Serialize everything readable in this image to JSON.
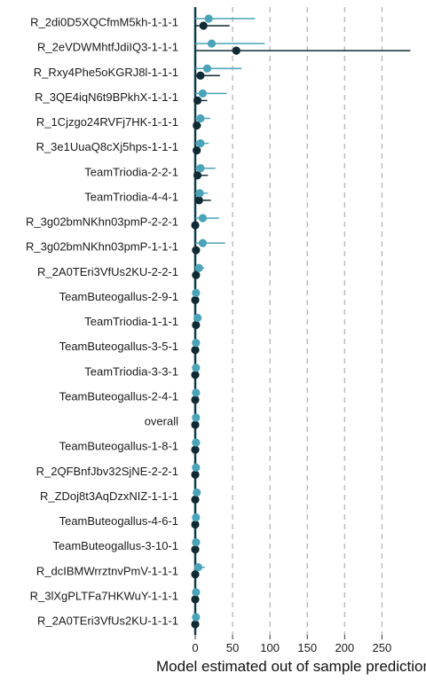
{
  "chart_data": {
    "type": "scatter",
    "xlabel": "Model estimated out of sample prediction",
    "ylabel": "",
    "xlim": [
      -12,
      290
    ],
    "xticks": [
      0,
      50,
      100,
      150,
      200,
      250
    ],
    "grid": "vertical dashed at x ticks",
    "colors": {
      "light": "#4aa3b8",
      "dark": "#0f2a33",
      "zero_line": "#0f3a4a",
      "grid": "#b5b5b5"
    },
    "categories": [
      "R_2di0D5XQCfmM5kh-1-1-1",
      "R_2eVDWMhtfJdiIQ3-1-1-1",
      "R_Rxy4Phe5oKGRJ8l-1-1-1",
      "R_3QE4iqN6t9BPkhX-1-1-1",
      "R_1Cjzgo24RVFj7HK-1-1-1",
      "R_3e1UuaQ8cXj5hps-1-1-1",
      "TeamTriodia-2-2-1",
      "TeamTriodia-4-4-1",
      "R_3g02bmNKhn03pmP-2-2-1",
      "R_3g02bmNKhn03pmP-1-1-1",
      "R_2A0TEri3VfUs2KU-2-2-1",
      "TeamButeogallus-2-9-1",
      "TeamTriodia-1-1-1",
      "TeamButeogallus-3-5-1",
      "TeamTriodia-3-3-1",
      "TeamButeogallus-2-4-1",
      "overall",
      "TeamButeogallus-1-8-1",
      "R_2QFBnfJbv32SjNE-2-2-1",
      "R_ZDoj8t3AqDzxNIZ-1-1-1",
      "TeamButeogallus-4-6-1",
      "TeamButeogallus-3-10-1",
      "R_dcIBMWrrztnvPmV-1-1-1",
      "R_3lXgPLTFa7HKWuY-1-1-1",
      "R_2A0TEri3VfUs2KU-1-1-1"
    ],
    "series": [
      {
        "values": [
          18,
          22,
          16,
          10,
          7,
          7,
          7,
          6,
          10,
          10,
          5,
          1,
          3,
          1,
          1,
          1,
          1,
          1,
          1,
          2,
          1,
          1,
          4,
          1,
          1
        ],
        "interval": [
          [
            0,
            80
          ],
          [
            0,
            93
          ],
          [
            0,
            62
          ],
          [
            0,
            42
          ],
          [
            0,
            20
          ],
          [
            0,
            18
          ],
          [
            0,
            27
          ],
          [
            0,
            17
          ],
          [
            0,
            32
          ],
          [
            0,
            40
          ],
          [
            0,
            12
          ],
          [
            0,
            4
          ],
          [
            0,
            9
          ],
          [
            0,
            4
          ],
          [
            0,
            4
          ],
          [
            0,
            4
          ],
          [
            0,
            3
          ],
          [
            0,
            3
          ],
          [
            0,
            3
          ],
          [
            0,
            6
          ],
          [
            0,
            3
          ],
          [
            0,
            3
          ],
          [
            0,
            13
          ],
          [
            0,
            3
          ],
          [
            0,
            3
          ]
        ]
      },
      {
        "values": [
          11,
          55,
          7,
          3,
          2,
          2,
          3,
          5,
          0,
          1,
          1,
          0,
          1,
          0,
          0,
          0,
          0,
          0,
          0,
          0,
          0,
          0,
          0,
          0,
          0
        ],
        "interval": [
          [
            0,
            46
          ],
          [
            0,
            288
          ],
          [
            0,
            33
          ],
          [
            0,
            16
          ],
          [
            0,
            8
          ],
          [
            0,
            7
          ],
          [
            0,
            17
          ],
          [
            0,
            21
          ],
          [
            0,
            3
          ],
          [
            0,
            6
          ],
          [
            0,
            4
          ],
          [
            0,
            2
          ],
          [
            0,
            3
          ],
          [
            0,
            2
          ],
          [
            0,
            2
          ],
          [
            0,
            2
          ],
          [
            0,
            2
          ],
          [
            0,
            2
          ],
          [
            0,
            2
          ],
          [
            0,
            2
          ],
          [
            0,
            2
          ],
          [
            0,
            2
          ],
          [
            0,
            3
          ],
          [
            0,
            2
          ],
          [
            0,
            2
          ]
        ]
      }
    ]
  }
}
